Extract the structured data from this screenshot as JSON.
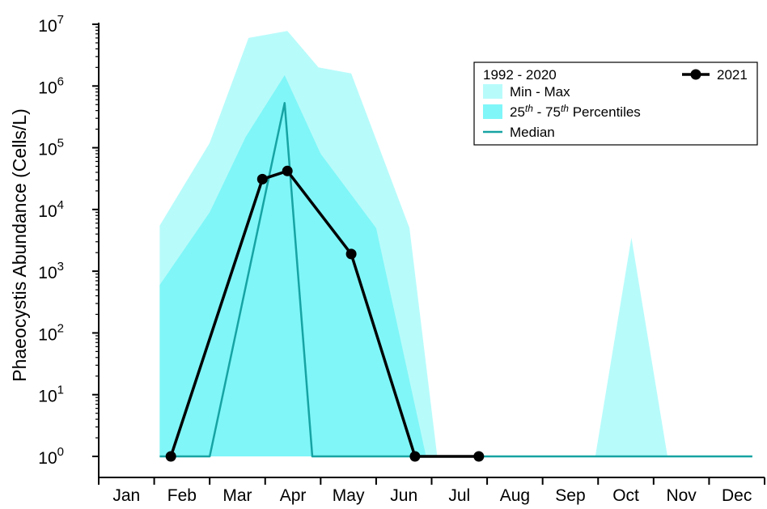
{
  "chart_data": {
    "type": "area",
    "title": "",
    "xlabel": "",
    "ylabel": "Phaeocystis Abundance (Cells/L)",
    "yscale": "log",
    "ylim": [
      1,
      10000000
    ],
    "y_ticks": [
      {
        "base": "10",
        "exp": "0"
      },
      {
        "base": "10",
        "exp": "1"
      },
      {
        "base": "10",
        "exp": "2"
      },
      {
        "base": "10",
        "exp": "3"
      },
      {
        "base": "10",
        "exp": "4"
      },
      {
        "base": "10",
        "exp": "5"
      },
      {
        "base": "10",
        "exp": "6"
      },
      {
        "base": "10",
        "exp": "7"
      }
    ],
    "x_range_months": [
      0,
      12
    ],
    "months": [
      "Jan",
      "Feb",
      "Mar",
      "Apr",
      "May",
      "Jun",
      "Jul",
      "Aug",
      "Sep",
      "Oct",
      "Nov",
      "Dec"
    ],
    "legend": {
      "placement": "top-right",
      "group_title": "1992 - 2020",
      "entries": [
        {
          "key": "minmax",
          "label": "Min - Max",
          "color": "#b8fbfb"
        },
        {
          "key": "pct",
          "label_pre": "25",
          "label_sup1": "th",
          "label_mid": " - 75",
          "label_sup2": "th",
          "label_post": " Percentiles",
          "color": "#80f6f8"
        },
        {
          "key": "median",
          "label": "Median",
          "color": "#17a3a3"
        }
      ],
      "series_2021_label": "2021"
    },
    "min_max": {
      "upper": [
        [
          1.1,
          5500
        ],
        [
          2.0,
          120000
        ],
        [
          2.7,
          6000000
        ],
        [
          3.4,
          7800000
        ],
        [
          3.96,
          2000000
        ],
        [
          4.55,
          1600000
        ],
        [
          5.6,
          5000
        ],
        [
          6.1,
          1
        ]
      ],
      "lower": [
        [
          1.1,
          1
        ],
        [
          2.75,
          1
        ],
        [
          3.35,
          500
        ],
        [
          3.86,
          1
        ],
        [
          11.78,
          1
        ]
      ],
      "extra_peak": [
        [
          8.95,
          1
        ],
        [
          9.6,
          3500
        ],
        [
          10.25,
          1
        ]
      ]
    },
    "percentiles_25_75": {
      "upper": [
        [
          1.1,
          600
        ],
        [
          2.0,
          9000
        ],
        [
          2.65,
          150000
        ],
        [
          3.35,
          1500000
        ],
        [
          4.0,
          80000
        ],
        [
          5.0,
          5000
        ],
        [
          5.9,
          1
        ]
      ],
      "lower": [
        [
          1.1,
          1
        ],
        [
          5.9,
          1
        ]
      ]
    },
    "median": [
      [
        1.1,
        1
      ],
      [
        2.0,
        1
      ],
      [
        3.35,
        530000
      ],
      [
        3.85,
        1
      ],
      [
        11.78,
        1
      ]
    ],
    "series_2021": {
      "name": "2021",
      "points": [
        [
          1.3,
          1
        ],
        [
          2.95,
          31000
        ],
        [
          3.4,
          42000
        ],
        [
          4.55,
          1900
        ],
        [
          5.7,
          1
        ],
        [
          6.85,
          1
        ]
      ]
    },
    "colors": {
      "minmax": "#b8fbfb",
      "pct": "#80f6f8",
      "median": "#17a3a3",
      "series_2021": "#000000"
    }
  }
}
